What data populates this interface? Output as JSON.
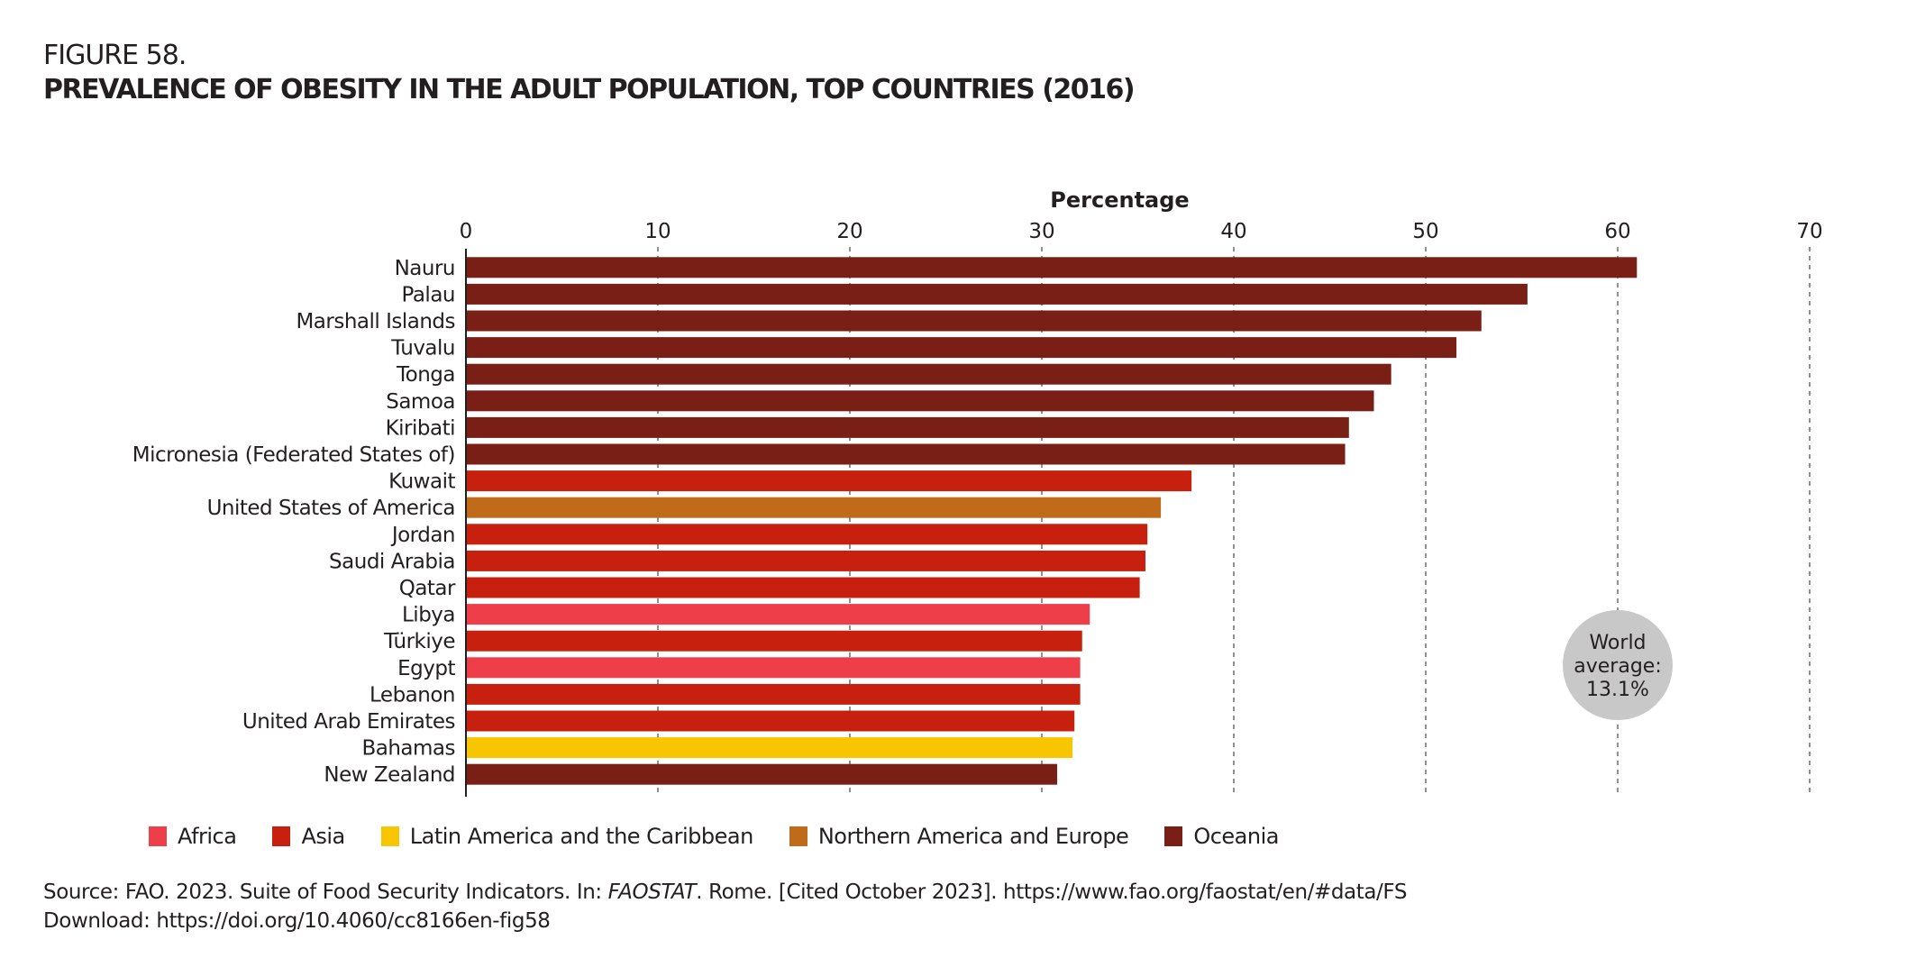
{
  "figure_label": "FIGURE 58.",
  "title": "PREVALENCE OF OBESITY IN THE ADULT POPULATION, TOP COUNTRIES (2016)",
  "colors": {
    "Africa": "#ee3e4a",
    "Asia": "#c8200f",
    "Latin America and the Caribbean": "#f8c600",
    "Northern America and Europe": "#c06b1a",
    "Oceania": "#7a1f16"
  },
  "chart_data": {
    "type": "bar",
    "orientation": "horizontal",
    "title": "PREVALENCE OF OBESITY IN THE ADULT POPULATION, TOP COUNTRIES (2016)",
    "xlabel": "Percentage",
    "ylabel": "",
    "xlim": [
      0,
      70
    ],
    "xticks": [
      0,
      10,
      20,
      30,
      40,
      50,
      60,
      70
    ],
    "grid": "vertical dashed",
    "legend_position": "bottom-left",
    "categories": [
      "Nauru",
      "Palau",
      "Marshall Islands",
      "Tuvalu",
      "Tonga",
      "Samoa",
      "Kiribati",
      "Micronesia (Federated States of)",
      "Kuwait",
      "United States of America",
      "Jordan",
      "Saudi Arabia",
      "Qatar",
      "Libya",
      "Türkiye",
      "Egypt",
      "Lebanon",
      "United Arab Emirates",
      "Bahamas",
      "New Zealand"
    ],
    "values": [
      61.0,
      55.3,
      52.9,
      51.6,
      48.2,
      47.3,
      46.0,
      45.8,
      37.8,
      36.2,
      35.5,
      35.4,
      35.1,
      32.5,
      32.1,
      32.0,
      32.0,
      31.7,
      31.6,
      30.8
    ],
    "regions": [
      "Oceania",
      "Oceania",
      "Oceania",
      "Oceania",
      "Oceania",
      "Oceania",
      "Oceania",
      "Oceania",
      "Asia",
      "Northern America and Europe",
      "Asia",
      "Asia",
      "Asia",
      "Africa",
      "Asia",
      "Africa",
      "Asia",
      "Asia",
      "Latin America and the Caribbean",
      "Oceania"
    ],
    "legend": [
      "Africa",
      "Asia",
      "Latin America and the Caribbean",
      "Northern America and Europe",
      "Oceania"
    ],
    "annotation": {
      "line1": "World",
      "line2": "average:",
      "line3": "13.1%",
      "value": 13.1
    }
  },
  "source": {
    "prefix": "Source: FAO. 2023. Suite of Food Security Indicators. In: ",
    "italic": "FAOSTAT",
    "suffix": ". Rome. [Cited October 2023]. https://www.fao.org/faostat/en/#data/FS",
    "download": "Download: https://doi.org/10.4060/cc8166en-fig58"
  }
}
